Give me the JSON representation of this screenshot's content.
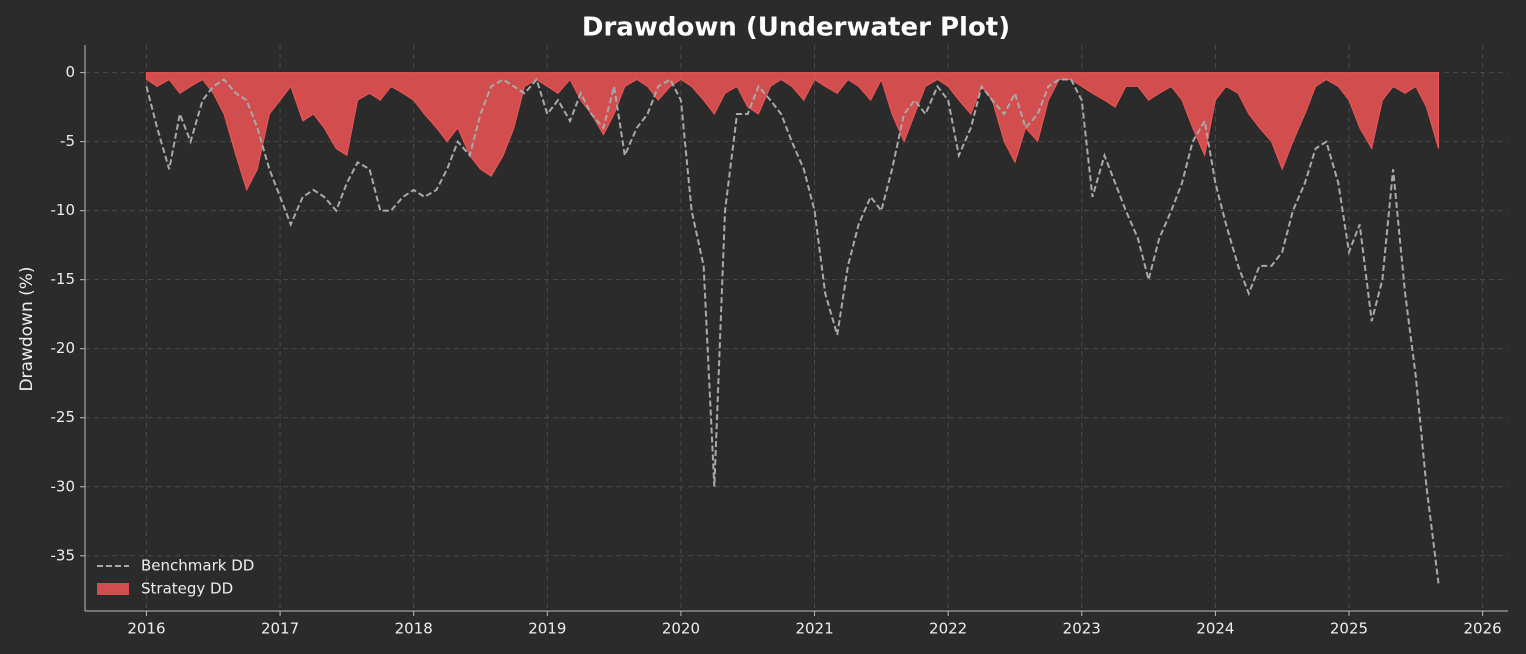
{
  "chart_data": {
    "type": "underwater",
    "title": "Drawdown (Underwater Plot)",
    "y_label": "Drawdown (%)",
    "xlim": [
      2015.54,
      2026.19
    ],
    "xticks": [
      2016,
      2017,
      2018,
      2019,
      2020,
      2021,
      2022,
      2023,
      2024,
      2025,
      2026
    ],
    "ylim": [
      -39,
      2
    ],
    "yticks": [
      0,
      -5,
      -10,
      -15,
      -20,
      -25,
      -30,
      -35
    ],
    "grid": true,
    "legend": "lower left",
    "x": [
      2016,
      2016.08,
      2016.17,
      2016.25,
      2016.33,
      2016.42,
      2016.5,
      2016.58,
      2016.67,
      2016.75,
      2016.83,
      2016.92,
      2017,
      2017.08,
      2017.17,
      2017.25,
      2017.33,
      2017.42,
      2017.5,
      2017.58,
      2017.67,
      2017.75,
      2017.83,
      2017.92,
      2018,
      2018.08,
      2018.17,
      2018.25,
      2018.33,
      2018.42,
      2018.5,
      2018.58,
      2018.67,
      2018.75,
      2018.83,
      2018.92,
      2019,
      2019.08,
      2019.17,
      2019.25,
      2019.33,
      2019.42,
      2019.5,
      2019.58,
      2019.67,
      2019.75,
      2019.83,
      2019.92,
      2020,
      2020.08,
      2020.17,
      2020.25,
      2020.33,
      2020.42,
      2020.5,
      2020.58,
      2020.67,
      2020.75,
      2020.83,
      2020.92,
      2021,
      2021.08,
      2021.17,
      2021.25,
      2021.33,
      2021.42,
      2021.5,
      2021.58,
      2021.67,
      2021.75,
      2021.83,
      2021.92,
      2022,
      2022.08,
      2022.17,
      2022.25,
      2022.33,
      2022.42,
      2022.5,
      2022.58,
      2022.67,
      2022.75,
      2022.83,
      2022.92,
      2023,
      2023.08,
      2023.17,
      2023.25,
      2023.33,
      2023.42,
      2023.5,
      2023.58,
      2023.67,
      2023.75,
      2023.83,
      2023.92,
      2024,
      2024.08,
      2024.17,
      2024.25,
      2024.33,
      2024.42,
      2024.5,
      2024.58,
      2024.67,
      2024.75,
      2024.83,
      2024.92,
      2025,
      2025.08,
      2025.17,
      2025.25,
      2025.33,
      2025.42,
      2025.5,
      2025.58,
      2025.67
    ],
    "series": [
      {
        "name": "Benchmark DD",
        "color": "#a9a9a9",
        "style": "dashed",
        "values": [
          -1,
          -4,
          -7,
          -3,
          -5,
          -2,
          -1,
          -0.5,
          -1.5,
          -2,
          -4,
          -7,
          -9,
          -11,
          -9,
          -8.5,
          -9,
          -10,
          -8,
          -6.5,
          -7,
          -10,
          -10,
          -9,
          -8.5,
          -9,
          -8.5,
          -7,
          -5,
          -6,
          -3,
          -1,
          -0.5,
          -1,
          -1.5,
          -0.5,
          -3,
          -2,
          -3.5,
          -1.5,
          -3,
          -4,
          -1,
          -6,
          -4,
          -3,
          -1,
          -0.5,
          -2,
          -10,
          -14,
          -30,
          -10,
          -3,
          -3,
          -1,
          -2,
          -3,
          -5,
          -7,
          -10,
          -16,
          -19,
          -14,
          -11,
          -9,
          -10,
          -7,
          -3,
          -2,
          -3,
          -1,
          -2,
          -6,
          -4,
          -1,
          -2,
          -3,
          -1.5,
          -4,
          -3,
          -1,
          -0.5,
          -0.5,
          -2,
          -9,
          -6,
          -8,
          -10,
          -12,
          -15,
          -12,
          -10,
          -8,
          -5,
          -3.5,
          -8,
          -11,
          -14,
          -16,
          -14,
          -14,
          -13,
          -10,
          -8,
          -5.5,
          -5,
          -8,
          -13,
          -11,
          -18,
          -15,
          -7,
          -16,
          -22,
          -30,
          -37
        ]
      },
      {
        "name": "Strategy DD",
        "color": "#f05555",
        "style": "area",
        "values": [
          -0.5,
          -1,
          -0.5,
          -1.5,
          -1,
          -0.5,
          -1.5,
          -3,
          -6,
          -8.5,
          -7,
          -3,
          -2,
          -1,
          -3.5,
          -3,
          -4,
          -5.5,
          -6,
          -2,
          -1.5,
          -2,
          -1,
          -1.5,
          -2,
          -3,
          -4,
          -5,
          -4,
          -6,
          -7,
          -7.5,
          -6,
          -4,
          -1,
          -0.5,
          -1,
          -1.5,
          -0.5,
          -2,
          -3,
          -4.5,
          -3,
          -1,
          -0.5,
          -1,
          -2,
          -1,
          -0.5,
          -1,
          -2,
          -3,
          -1.5,
          -1,
          -2.5,
          -3,
          -1,
          -0.5,
          -1,
          -2,
          -0.5,
          -1,
          -1.5,
          -0.5,
          -1,
          -2,
          -0.5,
          -3,
          -5,
          -3,
          -1,
          -0.5,
          -1,
          -2,
          -3,
          -1,
          -2,
          -5,
          -6.5,
          -4,
          -5,
          -2,
          -0.5,
          -0.5,
          -1,
          -1.5,
          -2,
          -2.5,
          -1,
          -1,
          -2,
          -1.5,
          -1,
          -2,
          -4,
          -6,
          -2,
          -1,
          -1.5,
          -3,
          -4,
          -5,
          -7,
          -5,
          -3,
          -1,
          -0.5,
          -1,
          -2,
          -4,
          -5.5,
          -2,
          -1,
          -1.5,
          -1,
          -2.5,
          -5.5
        ]
      }
    ]
  }
}
